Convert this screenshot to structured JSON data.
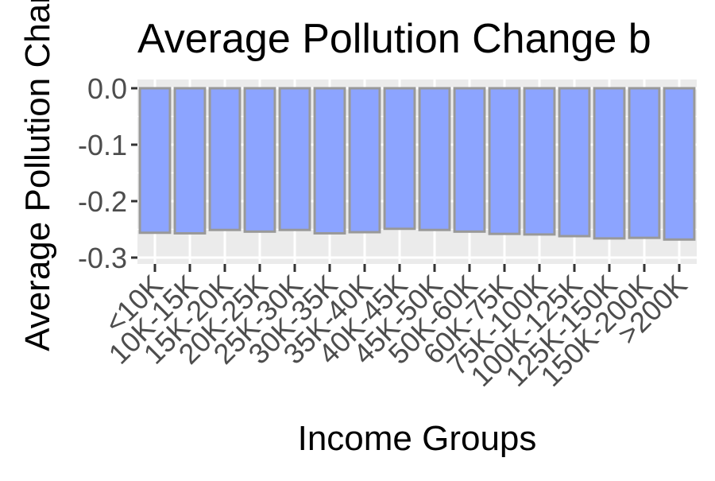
{
  "chart_data": {
    "type": "bar",
    "title": "Average Pollution Change b",
    "xlabel": "Income Groups",
    "ylabel": "Average Pollution Char",
    "categories": [
      "<10K",
      "10K-15K",
      "15K-20K",
      "20K-25K",
      "25K-30K",
      "30K-35K",
      "35K-40K",
      "40K-45K",
      "45K-50K",
      "50K-60K",
      "60K-75K",
      "75K-100K",
      "100K-125K",
      "125K-150K",
      "150K-200K",
      ">200K"
    ],
    "values": [
      -0.256,
      -0.257,
      -0.251,
      -0.254,
      -0.251,
      -0.257,
      -0.255,
      -0.249,
      -0.251,
      -0.254,
      -0.258,
      -0.259,
      -0.262,
      -0.266,
      -0.265,
      -0.268
    ],
    "yticks": [
      0.0,
      -0.1,
      -0.2,
      -0.3
    ],
    "ytick_labels": [
      "0.0",
      "-0.1",
      "-0.2",
      "-0.3"
    ],
    "ylim": [
      -0.305,
      0.005
    ],
    "grid": true,
    "colors": {
      "bar_fill": "#8ca4ff",
      "bar_stroke": "#999999",
      "panel_bg": "#ebebeb",
      "grid": "#ffffff",
      "text": "#000000",
      "tick_text": "#4d4d4d",
      "tick_mark": "#333333"
    }
  }
}
